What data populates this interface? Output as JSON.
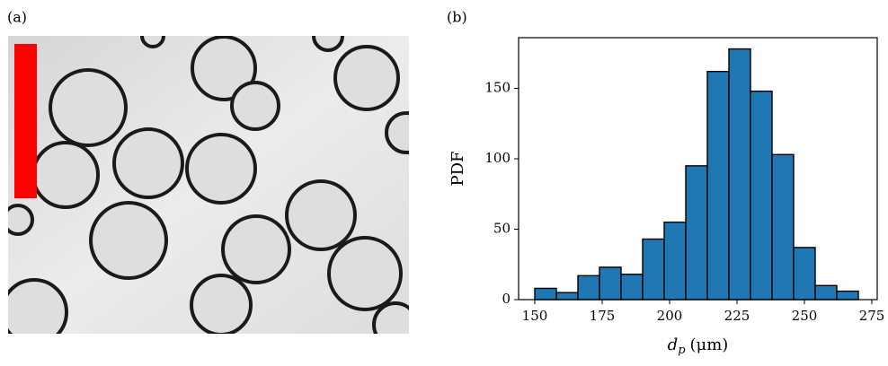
{
  "panel_labels": [
    "(a)",
    "(b)"
  ],
  "chart_data": {
    "type": "histogram",
    "bins": [
      150,
      158,
      166,
      174,
      182,
      190,
      198,
      206,
      214,
      222,
      230,
      238,
      246,
      254,
      262,
      270
    ],
    "counts": [
      8,
      5,
      17,
      23,
      18,
      43,
      55,
      95,
      162,
      178,
      148,
      103,
      37,
      10,
      6
    ],
    "color": "#1f77b4",
    "xlim": [
      144,
      277
    ],
    "xticks": [
      150,
      175,
      200,
      225,
      250,
      275
    ],
    "ylim": [
      0,
      186
    ],
    "yticks": [
      0,
      50,
      100,
      150
    ],
    "ylabel": "PDF",
    "xlabel": {
      "symbol": "d",
      "subscript": "p",
      "unit": "(μm)"
    }
  }
}
